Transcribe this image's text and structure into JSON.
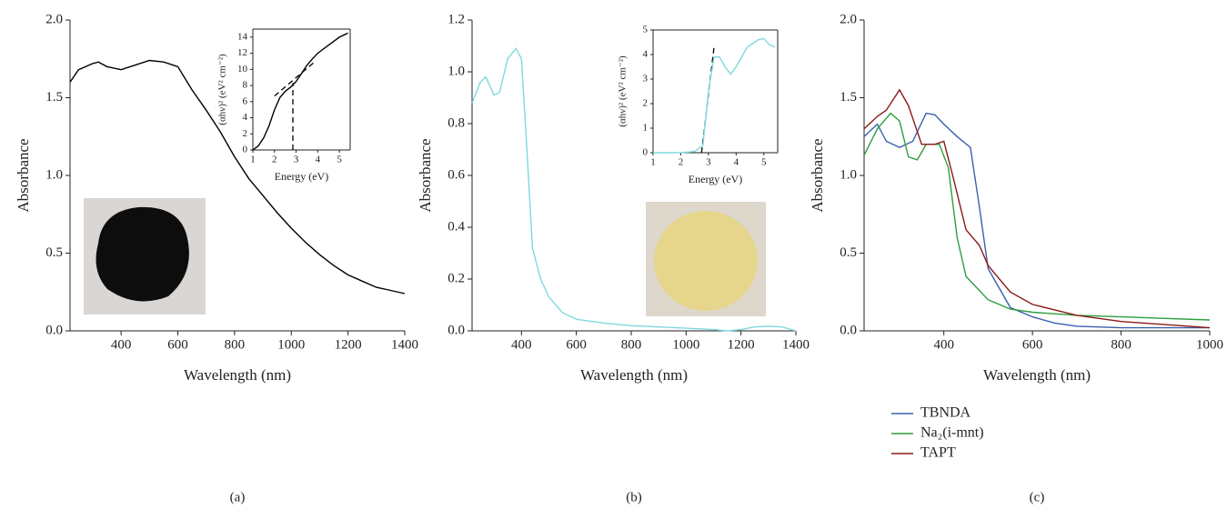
{
  "chart_data": [
    {
      "type": "line",
      "label": "(a)",
      "xlabel": "Wavelength (nm)",
      "ylabel": "Absorbance",
      "xlim": [
        220,
        1400
      ],
      "ylim": [
        0,
        2
      ],
      "xticks": [
        400,
        600,
        800,
        1000,
        1200,
        1400
      ],
      "yticks": [
        {
          "value": 0,
          "label": "0.0"
        },
        0.5,
        {
          "value": 1,
          "label": "1.0"
        },
        1.5,
        {
          "value": 2,
          "label": "2.0"
        }
      ],
      "series": [
        {
          "color": "#000000",
          "x": [
            220,
            250,
            300,
            320,
            350,
            400,
            450,
            500,
            550,
            600,
            650,
            700,
            750,
            800,
            850,
            900,
            950,
            1000,
            1050,
            1100,
            1150,
            1200,
            1250,
            1300,
            1350,
            1400
          ],
          "values": [
            1.6,
            1.68,
            1.72,
            1.73,
            1.7,
            1.68,
            1.71,
            1.74,
            1.73,
            1.7,
            1.55,
            1.42,
            1.28,
            1.12,
            0.98,
            0.87,
            0.76,
            0.66,
            0.57,
            0.49,
            0.42,
            0.36,
            0.32,
            0.28,
            0.26,
            0.24
          ]
        }
      ]
    },
    {
      "type": "line",
      "xlabel": "Energy (eV)",
      "ylabel": "(αhν)² (eV² cm⁻²)",
      "xlim": [
        1,
        5.5
      ],
      "ylim": [
        0,
        15
      ],
      "xticks": [
        1,
        2,
        3,
        4,
        5
      ],
      "yticks": [
        0,
        2,
        4,
        6,
        8,
        10,
        12,
        14
      ],
      "series": [
        {
          "color": "#000000",
          "x": [
            1,
            1.25,
            1.5,
            1.75,
            2,
            2.25,
            2.5,
            2.75,
            3,
            3.25,
            3.5,
            3.75,
            4,
            4.5,
            5,
            5.4
          ],
          "values": [
            0,
            0.5,
            1.5,
            3,
            5,
            6.5,
            7.3,
            7.8,
            8.5,
            9.5,
            10.5,
            11.3,
            12,
            13,
            14,
            14.5
          ]
        }
      ],
      "guides": [
        {
          "x": [
            2,
            3.8
          ],
          "values": [
            6.7,
            10.8
          ]
        },
        {
          "x": [
            2.85,
            2.85
          ],
          "values": [
            0,
            8.3
          ]
        }
      ]
    },
    {
      "type": "line",
      "label": "(b)",
      "xlabel": "Wavelength (nm)",
      "ylabel": "Absorbance",
      "xlim": [
        220,
        1400
      ],
      "ylim": [
        0,
        1.2
      ],
      "xticks": [
        400,
        600,
        800,
        1000,
        1200,
        1400
      ],
      "yticks": [
        {
          "value": 0,
          "label": "0.0"
        },
        0.2,
        0.4,
        0.6,
        0.8,
        {
          "value": 1,
          "label": "1.0"
        },
        1.2
      ],
      "series": [
        {
          "color": "#7fd8de",
          "x": [
            220,
            250,
            270,
            300,
            320,
            350,
            380,
            400,
            420,
            440,
            470,
            500,
            550,
            600,
            700,
            800,
            900,
            1000,
            1100,
            1150,
            1200,
            1250,
            1300,
            1350,
            1400
          ],
          "values": [
            0.88,
            0.96,
            0.98,
            0.91,
            0.92,
            1.05,
            1.09,
            1.05,
            0.7,
            0.32,
            0.2,
            0.13,
            0.07,
            0.045,
            0.03,
            0.02,
            0.015,
            0.01,
            0.005,
            0,
            0.005,
            0.015,
            0.018,
            0.015,
            0
          ]
        }
      ]
    },
    {
      "type": "line",
      "xlabel": "Energy (eV)",
      "ylabel": "(αhν)² (eV² cm⁻²)",
      "xlim": [
        1,
        5.5
      ],
      "ylim": [
        0,
        5
      ],
      "xticks": [
        1,
        2,
        3,
        4,
        5
      ],
      "yticks": [
        0,
        1,
        2,
        3,
        4,
        5
      ],
      "series": [
        {
          "color": "#7fd8de",
          "x": [
            1,
            2,
            2.5,
            2.8,
            3,
            3.2,
            3.4,
            3.6,
            3.8,
            4,
            4.4,
            4.8,
            5,
            5.2,
            5.4
          ],
          "values": [
            0,
            0,
            0.05,
            0.3,
            2.5,
            3.9,
            3.9,
            3.5,
            3.2,
            3.5,
            4.3,
            4.6,
            4.65,
            4.4,
            4.3
          ]
        }
      ],
      "guides": [
        {
          "x": [
            2.75,
            3.2
          ],
          "values": [
            0,
            4.3
          ]
        }
      ]
    },
    {
      "type": "line",
      "label": "(c)",
      "xlabel": "Wavelength (nm)",
      "ylabel": "Absorbance",
      "xlim": [
        220,
        1000
      ],
      "ylim": [
        0,
        2
      ],
      "legend": "below",
      "xticks": [
        400,
        600,
        800,
        1000
      ],
      "yticks": [
        {
          "value": 0,
          "label": "0.0"
        },
        0.5,
        {
          "value": 1,
          "label": "1.0"
        },
        1.5,
        {
          "value": 2,
          "label": "2.0"
        }
      ],
      "series": [
        {
          "name": "TBNDA",
          "color": "#3a5fad",
          "x": [
            220,
            250,
            270,
            300,
            330,
            360,
            380,
            400,
            430,
            460,
            480,
            500,
            550,
            600,
            650,
            700,
            800,
            1000
          ],
          "values": [
            1.25,
            1.33,
            1.22,
            1.18,
            1.22,
            1.4,
            1.39,
            1.33,
            1.25,
            1.18,
            0.8,
            0.4,
            0.15,
            0.09,
            0.05,
            0.03,
            0.02,
            0.02
          ]
        },
        {
          "name": "Na₂(i-mnt)",
          "color": "#2e9e3e",
          "x": [
            220,
            250,
            280,
            300,
            320,
            340,
            360,
            390,
            410,
            430,
            450,
            500,
            550,
            600,
            700,
            800,
            1000
          ],
          "values": [
            1.13,
            1.3,
            1.4,
            1.35,
            1.12,
            1.1,
            1.2,
            1.2,
            1.05,
            0.6,
            0.35,
            0.2,
            0.14,
            0.12,
            0.1,
            0.09,
            0.07
          ]
        },
        {
          "name": "TAPT",
          "color": "#8b1a1a",
          "x": [
            220,
            250,
            270,
            300,
            320,
            350,
            380,
            400,
            420,
            450,
            480,
            500,
            550,
            600,
            700,
            800,
            1000
          ],
          "values": [
            1.3,
            1.38,
            1.42,
            1.55,
            1.45,
            1.2,
            1.2,
            1.22,
            1.0,
            0.65,
            0.55,
            0.42,
            0.25,
            0.17,
            0.1,
            0.06,
            0.02
          ]
        }
      ]
    }
  ]
}
